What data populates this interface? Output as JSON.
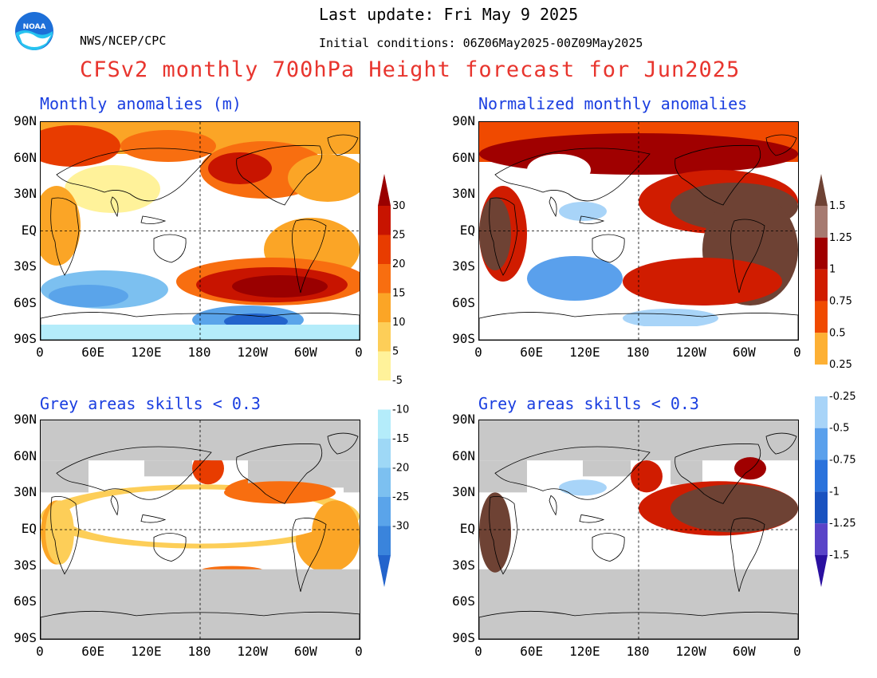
{
  "header": {
    "last_update": "Last update: Fri May  9 2025",
    "initial_conditions": "Initial conditions: 06Z06May2025-00Z09May2025",
    "agency": "NWS/NCEP/CPC",
    "logo_text": "NOAA"
  },
  "title": "CFSv2 monthly 700hPa Height forecast for Jun2025",
  "colors": {
    "title": "#e8352e",
    "panel_title": "#1a3ee0",
    "grey_mask": "#c8c8c8",
    "ocean_neutral": "#ffffff"
  },
  "panels": [
    {
      "title": "Monthly anomalies (m)",
      "variable": "anomaly_m"
    },
    {
      "title": "Normalized monthly anomalies",
      "variable": "normalized"
    },
    {
      "title": "Grey areas skills < 0.3",
      "variable": "anomaly_m_masked"
    },
    {
      "title": "Grey areas skills < 0.3",
      "variable": "normalized_masked"
    }
  ],
  "lat_ticks": [
    "90N",
    "60N",
    "30N",
    "EQ",
    "30S",
    "60S",
    "90S"
  ],
  "lon_ticks": [
    "0",
    "60E",
    "120E",
    "180",
    "120W",
    "60W",
    "0"
  ],
  "colorbar_left": {
    "labels": [
      "30",
      "25",
      "20",
      "15",
      "10",
      "5",
      "-5",
      "-10",
      "-15",
      "-20",
      "-25",
      "-30"
    ],
    "colors": [
      "#9a0000",
      "#c81400",
      "#e83c00",
      "#f86e10",
      "#fba526",
      "#fdce58",
      "#fff29a",
      "#ffffff",
      "#b4ecfa",
      "#9ed8f6",
      "#7cc0f0",
      "#5aa4ea",
      "#3a84dc",
      "#2364cc"
    ]
  },
  "colorbar_right": {
    "labels": [
      "1.5",
      "1.25",
      "1",
      "0.75",
      "0.5",
      "0.25",
      "-0.25",
      "-0.5",
      "-0.75",
      "-1",
      "-1.25",
      "-1.5"
    ],
    "colors": [
      "#6e4234",
      "#a67a70",
      "#a00000",
      "#d01c00",
      "#f04a00",
      "#fdb034",
      "#ffffff",
      "#a8d4f8",
      "#5aa0ec",
      "#2a72dc",
      "#1a52c0",
      "#5a44c8",
      "#2a10a0"
    ]
  }
}
